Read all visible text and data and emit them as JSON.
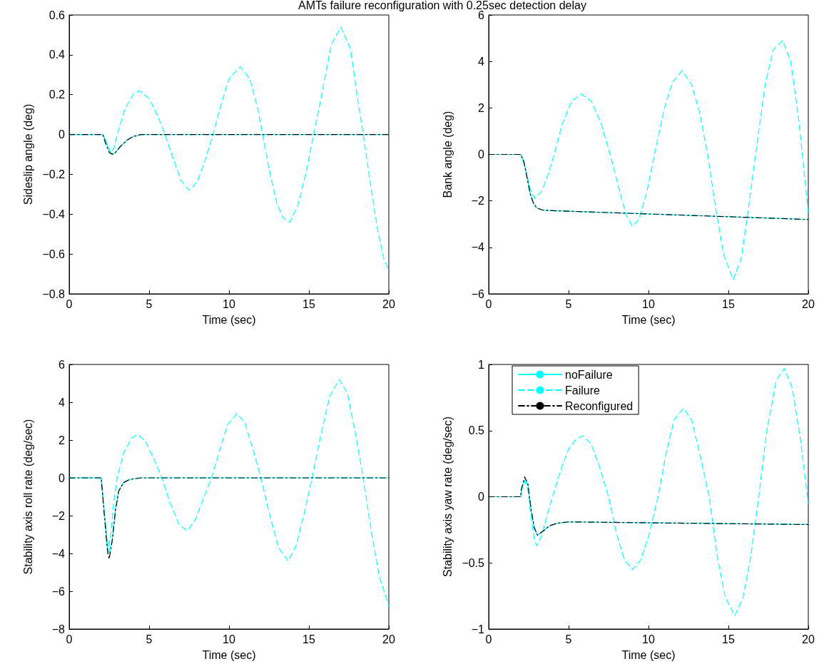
{
  "chart_data": [
    {
      "type": "line",
      "title": "AMTs failure reconfiguration with 0.25sec detection delay",
      "xlabel": "Time (sec)",
      "ylabel": "Sideslip angle (deg)",
      "xlim": [
        0,
        20
      ],
      "xticks": [
        0,
        5,
        10,
        15,
        20
      ],
      "ylim": [
        -0.8,
        0.6
      ],
      "yticks": [
        -0.8,
        -0.6,
        -0.4,
        -0.2,
        0,
        0.2,
        0.4,
        0.6
      ],
      "grid": false,
      "legend": false,
      "series": [
        {
          "color": "#00ffff",
          "line_style": "solid",
          "x": [
            0,
            2.1,
            2.3,
            2.5,
            2.7,
            2.9,
            3.2,
            3.6,
            4.0,
            4.5,
            20
          ],
          "values": [
            0,
            0,
            -0.03,
            -0.08,
            -0.1,
            -0.09,
            -0.06,
            -0.03,
            -0.01,
            0,
            0
          ]
        },
        {
          "color": "#00ffff",
          "line_style": "dashed",
          "x": [
            0,
            2.1,
            2.4,
            2.6,
            2.8,
            3.0,
            3.5,
            4.0,
            4.4,
            5.0,
            5.5,
            6.0,
            6.5,
            7.0,
            7.5,
            8.0,
            8.5,
            9.0,
            9.5,
            10.0,
            10.7,
            11.3,
            11.8,
            12.1,
            12.5,
            13.0,
            13.4,
            13.8,
            14.3,
            14.8,
            15.3,
            15.8,
            16.4,
            17.0,
            17.6,
            18.1,
            18.4,
            18.8,
            19.3,
            19.7,
            20.0
          ],
          "values": [
            0,
            0,
            -0.06,
            -0.09,
            -0.07,
            0,
            0.13,
            0.2,
            0.22,
            0.18,
            0.1,
            0,
            -0.12,
            -0.23,
            -0.28,
            -0.24,
            -0.13,
            0,
            0.15,
            0.28,
            0.34,
            0.28,
            0.13,
            0,
            -0.17,
            -0.35,
            -0.42,
            -0.44,
            -0.36,
            -0.2,
            0,
            0.2,
            0.45,
            0.54,
            0.43,
            0.15,
            0,
            -0.22,
            -0.48,
            -0.63,
            -0.68
          ]
        },
        {
          "color": "#000000",
          "line_style": "dashdot",
          "x": [
            0,
            2.1,
            2.3,
            2.5,
            2.7,
            2.9,
            3.2,
            3.6,
            4.0,
            4.5,
            20
          ],
          "values": [
            0,
            0,
            -0.05,
            -0.09,
            -0.1,
            -0.09,
            -0.06,
            -0.03,
            -0.01,
            0,
            0
          ]
        }
      ]
    },
    {
      "type": "line",
      "xlabel": "Time (sec)",
      "ylabel": "Bank angle (deg)",
      "xlim": [
        0,
        20
      ],
      "xticks": [
        0,
        5,
        10,
        15,
        20
      ],
      "ylim": [
        -6,
        6
      ],
      "yticks": [
        -6,
        -4,
        -2,
        0,
        2,
        4,
        6
      ],
      "grid": false,
      "legend": false,
      "series": [
        {
          "color": "#00ffff",
          "line_style": "solid",
          "x": [
            0,
            2.0,
            2.2,
            2.4,
            2.6,
            2.8,
            3.0,
            3.4,
            4.0,
            20
          ],
          "values": [
            0,
            0,
            -0.3,
            -1.0,
            -1.7,
            -2.1,
            -2.3,
            -2.4,
            -2.42,
            -2.8
          ]
        },
        {
          "color": "#00ffff",
          "line_style": "dashed",
          "x": [
            0,
            2.0,
            2.3,
            2.6,
            2.9,
            3.3,
            3.7,
            4.1,
            4.6,
            5.2,
            5.8,
            6.4,
            7.0,
            7.6,
            8.2,
            8.6,
            9.0,
            9.4,
            9.9,
            10.4,
            11.0,
            11.5,
            12.1,
            12.7,
            13.2,
            13.7,
            14.2,
            14.7,
            15.3,
            15.8,
            16.2,
            16.7,
            17.3,
            17.8,
            18.4,
            18.9,
            19.4,
            19.7,
            20
          ],
          "values": [
            0,
            0,
            -0.6,
            -1.5,
            -1.9,
            -1.6,
            -0.9,
            0,
            1.3,
            2.3,
            2.6,
            2.3,
            1.4,
            0,
            -1.6,
            -2.6,
            -3.1,
            -2.8,
            -1.6,
            0.1,
            2.0,
            3.1,
            3.6,
            3.0,
            1.8,
            0,
            -2.3,
            -4.3,
            -5.4,
            -4.5,
            -2.6,
            0,
            3.0,
            4.5,
            4.9,
            4.0,
            1.5,
            -0.5,
            -2.5
          ]
        },
        {
          "color": "#000000",
          "line_style": "dashdot",
          "x": [
            0,
            2.0,
            2.2,
            2.4,
            2.6,
            2.8,
            3.0,
            3.4,
            4.0,
            20
          ],
          "values": [
            0,
            0,
            -0.3,
            -1.0,
            -1.7,
            -2.1,
            -2.3,
            -2.4,
            -2.42,
            -2.8
          ]
        }
      ]
    },
    {
      "type": "line",
      "xlabel": "Time (sec)",
      "ylabel": "Stability axis roll rate (deg/sec)",
      "xlim": [
        0,
        20
      ],
      "xticks": [
        0,
        5,
        10,
        15,
        20
      ],
      "ylim": [
        -8,
        6
      ],
      "yticks": [
        -8,
        -6,
        -4,
        -2,
        0,
        2,
        4,
        6
      ],
      "grid": false,
      "legend": false,
      "series": [
        {
          "color": "#00ffff",
          "line_style": "solid",
          "x": [
            0,
            2.0,
            2.2,
            2.4,
            2.5,
            2.7,
            2.9,
            3.1,
            3.4,
            3.8,
            4.5,
            20
          ],
          "values": [
            0,
            0,
            -1.8,
            -3.6,
            -4.0,
            -3.2,
            -1.6,
            -0.7,
            -0.25,
            -0.08,
            0,
            0
          ]
        },
        {
          "color": "#00ffff",
          "line_style": "dashed",
          "x": [
            0,
            2.0,
            2.2,
            2.4,
            2.6,
            2.8,
            3.0,
            3.4,
            3.9,
            4.3,
            4.8,
            5.3,
            5.8,
            6.3,
            6.9,
            7.4,
            7.9,
            8.4,
            8.9,
            9.4,
            9.9,
            10.5,
            11.0,
            11.5,
            12.0,
            12.5,
            13.1,
            13.7,
            14.2,
            14.7,
            15.2,
            15.7,
            16.3,
            16.9,
            17.4,
            17.9,
            18.4,
            18.9,
            19.4,
            20.0
          ],
          "values": [
            0,
            0,
            -1.8,
            -3.9,
            -3.0,
            -1.2,
            0,
            1.3,
            2.1,
            2.3,
            1.9,
            1.0,
            0,
            -1.3,
            -2.5,
            -2.8,
            -2.2,
            -1.1,
            0,
            1.4,
            2.8,
            3.4,
            2.9,
            1.5,
            0,
            -1.8,
            -3.7,
            -4.4,
            -3.6,
            -1.9,
            0,
            2.1,
            4.3,
            5.2,
            4.5,
            2.4,
            0,
            -2.8,
            -5.2,
            -6.8
          ]
        },
        {
          "color": "#000000",
          "line_style": "dashdot",
          "x": [
            0,
            2.0,
            2.2,
            2.4,
            2.5,
            2.7,
            2.9,
            3.1,
            3.4,
            3.8,
            4.5,
            20
          ],
          "values": [
            0,
            0,
            -2.0,
            -3.9,
            -4.3,
            -3.3,
            -1.7,
            -0.7,
            -0.25,
            -0.08,
            0,
            0
          ]
        }
      ]
    },
    {
      "type": "line",
      "xlabel": "Time (sec)",
      "ylabel": "Stability axis yaw rate (deg/sec)",
      "xlim": [
        0,
        20
      ],
      "xticks": [
        0,
        5,
        10,
        15,
        20
      ],
      "ylim": [
        -1,
        1
      ],
      "yticks": [
        -1,
        -0.5,
        0,
        0.5,
        1
      ],
      "grid": false,
      "legend": "top left",
      "series": [
        {
          "name": "noFailure",
          "color": "#00ffff",
          "line_style": "solid",
          "x": [
            0,
            2.0,
            2.05,
            2.25,
            2.45,
            2.65,
            2.85,
            3.05,
            3.4,
            3.8,
            4.3,
            5.0,
            20
          ],
          "values": [
            0,
            0,
            0.05,
            0.13,
            0.09,
            -0.1,
            -0.24,
            -0.29,
            -0.26,
            -0.22,
            -0.2,
            -0.19,
            -0.21
          ]
        },
        {
          "name": "Failure",
          "color": "#00ffff",
          "line_style": "dashed",
          "x": [
            0,
            2.0,
            2.05,
            2.25,
            2.45,
            2.65,
            2.85,
            3.0,
            3.3,
            3.7,
            4.0,
            4.5,
            5.0,
            5.5,
            5.9,
            6.4,
            6.9,
            7.5,
            8.0,
            8.5,
            9.0,
            9.5,
            10.0,
            10.6,
            11.1,
            11.6,
            12.2,
            12.7,
            13.2,
            13.8,
            14.3,
            14.8,
            15.4,
            15.9,
            16.4,
            16.9,
            17.4,
            18.0,
            18.5,
            19.0,
            19.5,
            20.0
          ],
          "values": [
            0,
            0,
            0.05,
            0.12,
            0.05,
            -0.15,
            -0.32,
            -0.37,
            -0.3,
            -0.12,
            0,
            0.2,
            0.36,
            0.44,
            0.46,
            0.4,
            0.24,
            0,
            -0.28,
            -0.48,
            -0.55,
            -0.48,
            -0.3,
            0,
            0.33,
            0.58,
            0.67,
            0.58,
            0.33,
            0,
            -0.45,
            -0.76,
            -0.9,
            -0.77,
            -0.45,
            0,
            0.5,
            0.88,
            0.97,
            0.82,
            0.44,
            -0.05
          ]
        },
        {
          "name": "Reconfigured",
          "color": "#000000",
          "line_style": "dashdot",
          "x": [
            0,
            2.0,
            2.05,
            2.25,
            2.45,
            2.65,
            2.85,
            3.05,
            3.4,
            3.8,
            4.3,
            5.0,
            20
          ],
          "values": [
            0,
            0,
            0.06,
            0.15,
            0.1,
            -0.09,
            -0.23,
            -0.29,
            -0.26,
            -0.22,
            -0.2,
            -0.19,
            -0.21
          ]
        }
      ]
    }
  ]
}
